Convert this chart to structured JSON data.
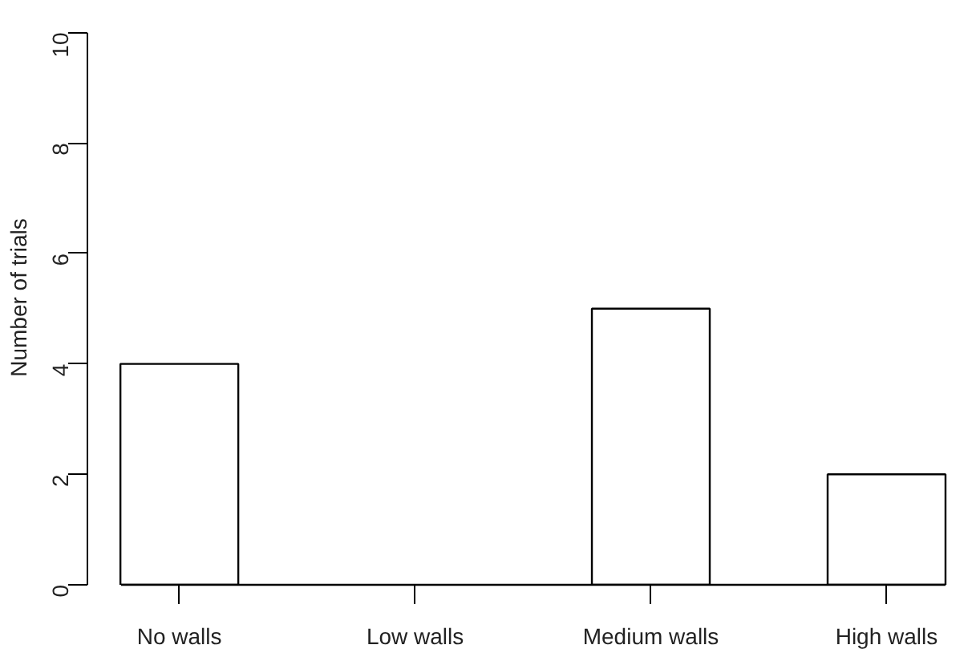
{
  "chart_data": {
    "type": "bar",
    "ylabel": "Number of trials",
    "categories": [
      "No walls",
      "Low walls",
      "Medium walls",
      "High walls"
    ],
    "values": [
      4,
      0,
      5,
      2
    ],
    "color": "#ffffff",
    "ylim": [
      0,
      10
    ],
    "yticks": [
      0,
      2,
      4,
      6,
      8,
      10
    ]
  }
}
